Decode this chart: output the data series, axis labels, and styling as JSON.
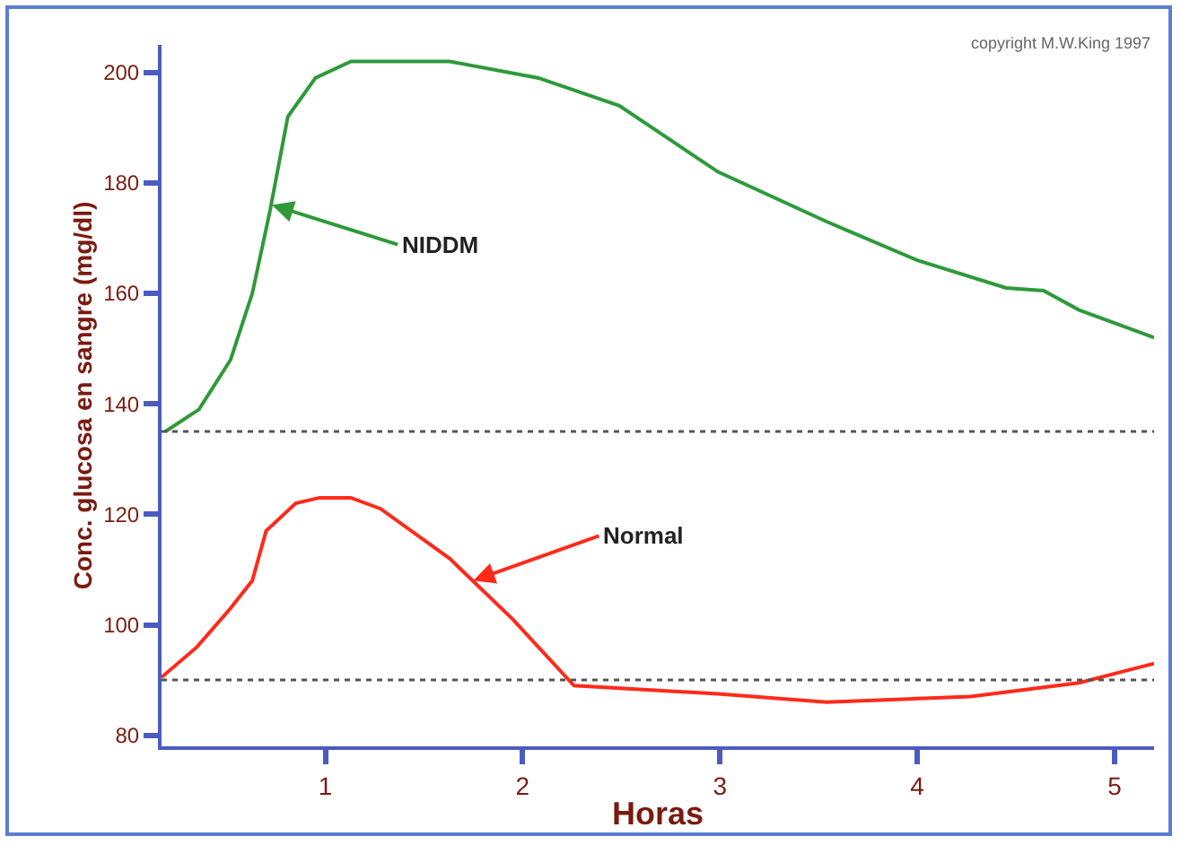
{
  "chart_data": {
    "type": "line",
    "xlabel": "Horas",
    "ylabel": "Conc. glucosa en sangre (mg/dl)",
    "xlim": [
      0.17,
      5.2
    ],
    "ylim": [
      78,
      205
    ],
    "xticks": [
      1,
      2,
      3,
      4,
      5
    ],
    "yticks": [
      80,
      100,
      120,
      140,
      160,
      180,
      200
    ],
    "grid": false,
    "marker": "none",
    "line_style": "solid",
    "series": [
      {
        "color": "#2e9a3a",
        "x": [
          0.19,
          0.36,
          0.52,
          0.63,
          0.72,
          0.81,
          0.95,
          1.13,
          1.63,
          2.08,
          2.49,
          2.99,
          3.54,
          4.0,
          4.45,
          4.64,
          4.82,
          5.2
        ],
        "values": [
          135,
          139,
          148,
          160,
          175,
          192,
          199,
          202,
          202,
          199,
          194,
          182,
          173,
          166,
          161,
          160.5,
          157,
          152
        ]
      },
      {
        "color": "#ff2a1a",
        "x": [
          0.17,
          0.35,
          0.52,
          0.63,
          0.7,
          0.85,
          0.97,
          1.13,
          1.28,
          1.63,
          1.95,
          2.26,
          2.99,
          3.54,
          4.27,
          4.82,
          5.2
        ],
        "values": [
          90.5,
          96,
          103,
          108,
          117,
          122,
          123,
          123,
          121,
          112,
          101,
          89,
          87.5,
          86,
          87,
          89.5,
          93
        ]
      }
    ],
    "ref_lines": [
      {
        "axis": "y",
        "value": 135,
        "color": "#555555",
        "line_style": "dotted"
      },
      {
        "axis": "y",
        "value": 90,
        "color": "#555555",
        "line_style": "dotted"
      }
    ],
    "annotations": [
      {
        "text": "NIDDM",
        "x": 0.73,
        "y": 176
      },
      {
        "text": "Normal",
        "x": 1.75,
        "y": 108
      },
      "copyright M.W.King 1997"
    ]
  }
}
